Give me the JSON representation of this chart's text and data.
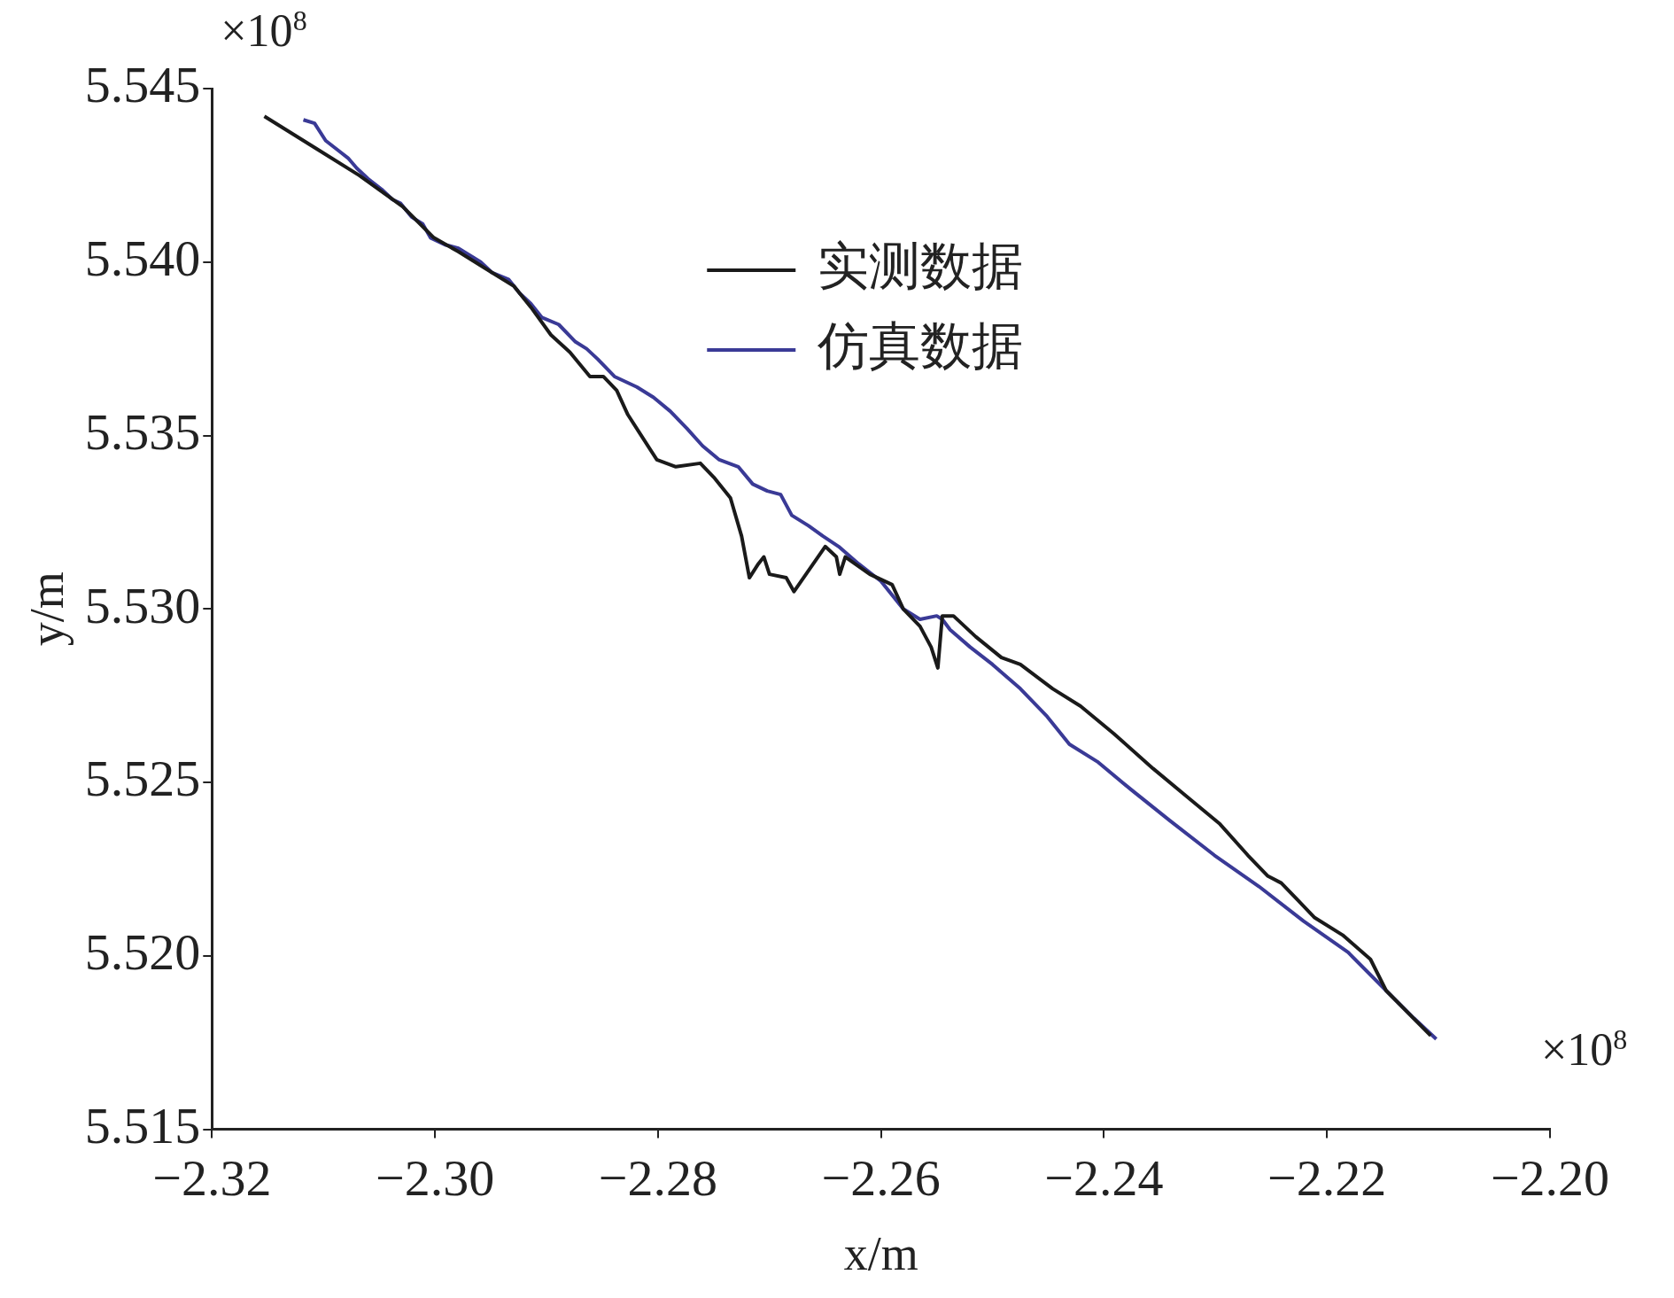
{
  "chart_data": {
    "type": "line",
    "xlabel": "x/m",
    "ylabel": "y/m",
    "annotations": [
      "×10$^{8}$",
      "×10$^{8}$"
    ],
    "xlim": [
      -2.32,
      -2.2
    ],
    "ylim": [
      5.515,
      5.545
    ],
    "xticks": [
      {
        "value": -2.32,
        "label": "−2.32"
      },
      {
        "value": -2.3,
        "label": "−2.30"
      },
      {
        "value": -2.28,
        "label": "−2.28"
      },
      {
        "value": -2.26,
        "label": "−2.26"
      },
      {
        "value": -2.24,
        "label": "−2.24"
      },
      {
        "value": -2.22,
        "label": "−2.22"
      },
      {
        "value": -2.2,
        "label": "−2.20"
      }
    ],
    "yticks": [
      5.515,
      {
        "value": 5.52,
        "label": "5.520"
      },
      5.525,
      {
        "value": 5.53,
        "label": "5.530"
      },
      5.535,
      {
        "value": 5.54,
        "label": "5.540"
      },
      5.545
    ],
    "grid": false,
    "legend": "top right",
    "marker": "none",
    "line_style": "solid",
    "series": [
      {
        "name": "实测数据",
        "color": "#1a1a1a",
        "x": [
          -2.3153,
          -2.3108,
          -2.3068,
          -2.3029,
          -2.3001,
          -2.2979,
          -2.2949,
          -2.2929,
          -2.2914,
          -2.2896,
          -2.2879,
          -2.2861,
          -2.2849,
          -2.2837,
          -2.2827,
          -2.2817,
          -2.2801,
          -2.2784,
          -2.2762,
          -2.275,
          -2.2735,
          -2.2725,
          -2.2718,
          -2.271,
          -2.2705,
          -2.27,
          -2.2685,
          -2.2678,
          -2.265,
          -2.264,
          -2.2637,
          -2.2632,
          -2.261,
          -2.259,
          -2.258,
          -2.2565,
          -2.2555,
          -2.2549,
          -2.2545,
          -2.2535,
          -2.2515,
          -2.2492,
          -2.2475,
          -2.2446,
          -2.2421,
          -2.2391,
          -2.2356,
          -2.2326,
          -2.2296,
          -2.2271,
          -2.2253,
          -2.2241,
          -2.2226,
          -2.2211,
          -2.2186,
          -2.2161,
          -2.2147,
          -2.2107
        ],
        "values": [
          5.5442,
          5.5433,
          5.5425,
          5.5416,
          5.5407,
          5.5403,
          5.5397,
          5.5393,
          5.5387,
          5.5379,
          5.5374,
          5.5367,
          5.5367,
          5.5363,
          5.5356,
          5.5351,
          5.5343,
          5.5341,
          5.5342,
          5.5338,
          5.5332,
          5.5321,
          5.5309,
          5.5313,
          5.5315,
          5.531,
          5.5309,
          5.5305,
          5.5318,
          5.5315,
          5.531,
          5.5315,
          5.531,
          5.5307,
          5.53,
          5.5295,
          5.5289,
          5.5283,
          5.5298,
          5.5298,
          5.5292,
          5.5286,
          5.5284,
          5.5277,
          5.5272,
          5.5264,
          5.5254,
          5.5246,
          5.5238,
          5.5229,
          5.5223,
          5.5221,
          5.5216,
          5.5211,
          5.5206,
          5.5199,
          5.519,
          5.5177
        ]
      },
      {
        "name": "仿真数据",
        "color": "#3a3a96",
        "x": [
          -2.3118,
          -2.3108,
          -2.3098,
          -2.3086,
          -2.3078,
          -2.307,
          -2.306,
          -2.3048,
          -2.3038,
          -2.3031,
          -2.3021,
          -2.3011,
          -2.3004,
          -2.2991,
          -2.2979,
          -2.2969,
          -2.2959,
          -2.2949,
          -2.2934,
          -2.2924,
          -2.2914,
          -2.2904,
          -2.2889,
          -2.2874,
          -2.2864,
          -2.2854,
          -2.2839,
          -2.2819,
          -2.2804,
          -2.2789,
          -2.2774,
          -2.276,
          -2.2745,
          -2.2728,
          -2.2715,
          -2.2702,
          -2.269,
          -2.268,
          -2.2665,
          -2.2652,
          -2.2638,
          -2.262,
          -2.26,
          -2.258,
          -2.2565,
          -2.255,
          -2.2545,
          -2.2538,
          -2.252,
          -2.25,
          -2.2475,
          -2.2451,
          -2.2431,
          -2.2406,
          -2.2376,
          -2.2341,
          -2.2301,
          -2.2261,
          -2.2221,
          -2.2181,
          -2.2147,
          -2.2122,
          -2.2102
        ],
        "values": [
          5.5441,
          5.544,
          5.5435,
          5.5432,
          5.543,
          5.5427,
          5.5424,
          5.5421,
          5.5418,
          5.5417,
          5.5413,
          5.5411,
          5.5407,
          5.5405,
          5.5404,
          5.5402,
          5.54,
          5.5397,
          5.5395,
          5.5391,
          5.5388,
          5.5384,
          5.5382,
          5.5377,
          5.5375,
          5.5372,
          5.5367,
          5.5364,
          5.5361,
          5.5357,
          5.5352,
          5.5347,
          5.5343,
          5.5341,
          5.5336,
          5.5334,
          5.5333,
          5.5327,
          5.5324,
          5.5321,
          5.5318,
          5.5313,
          5.5308,
          5.53,
          5.5297,
          5.5298,
          5.5297,
          5.5294,
          5.5289,
          5.5284,
          5.5277,
          5.5269,
          5.5261,
          5.5256,
          5.5248,
          5.5239,
          5.5229,
          5.522,
          5.521,
          5.5201,
          5.519,
          5.5182,
          5.5176
        ]
      }
    ]
  }
}
